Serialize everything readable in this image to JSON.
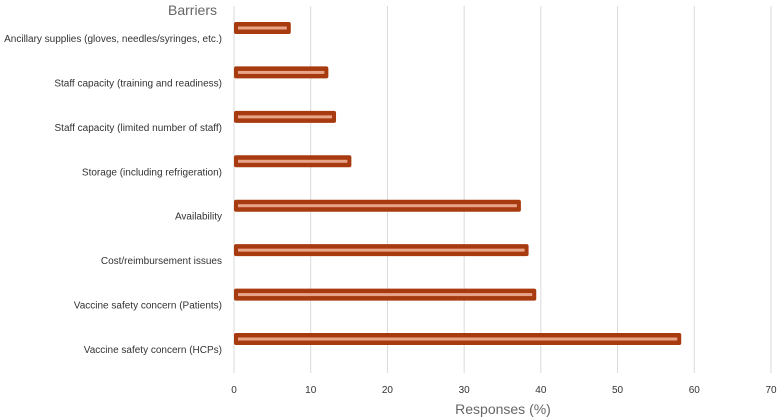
{
  "chart_data": {
    "type": "bar",
    "orientation": "horizontal",
    "title": "",
    "ylabel": "Barriers",
    "xlabel": "Responses (%)",
    "categories": [
      "Ancillary supplies (gloves, needles/syringes, etc.)",
      "Staff capacity (training and readiness)",
      "Staff capacity (limited number of staff)",
      "Storage (including refrigeration)",
      "Availability",
      "Cost/reimbursement issues",
      "Vaccine safety concern (Patients)",
      "Vaccine safety concern (HCPs)"
    ],
    "values": [
      7.4,
      12.3,
      13.3,
      15.3,
      37.4,
      38.4,
      39.4,
      58.3
    ],
    "xlim": [
      0,
      70
    ],
    "xticks": [
      "0",
      "10",
      "20",
      "30",
      "40",
      "50",
      "60",
      "70"
    ],
    "grid": "vertical",
    "legend": "none",
    "colors": {
      "bar_fill": "#a83a10",
      "bar_inner": "#e8a488",
      "grid": "#d9d9d9",
      "text": "#333333",
      "axis_title": "#666666"
    }
  }
}
